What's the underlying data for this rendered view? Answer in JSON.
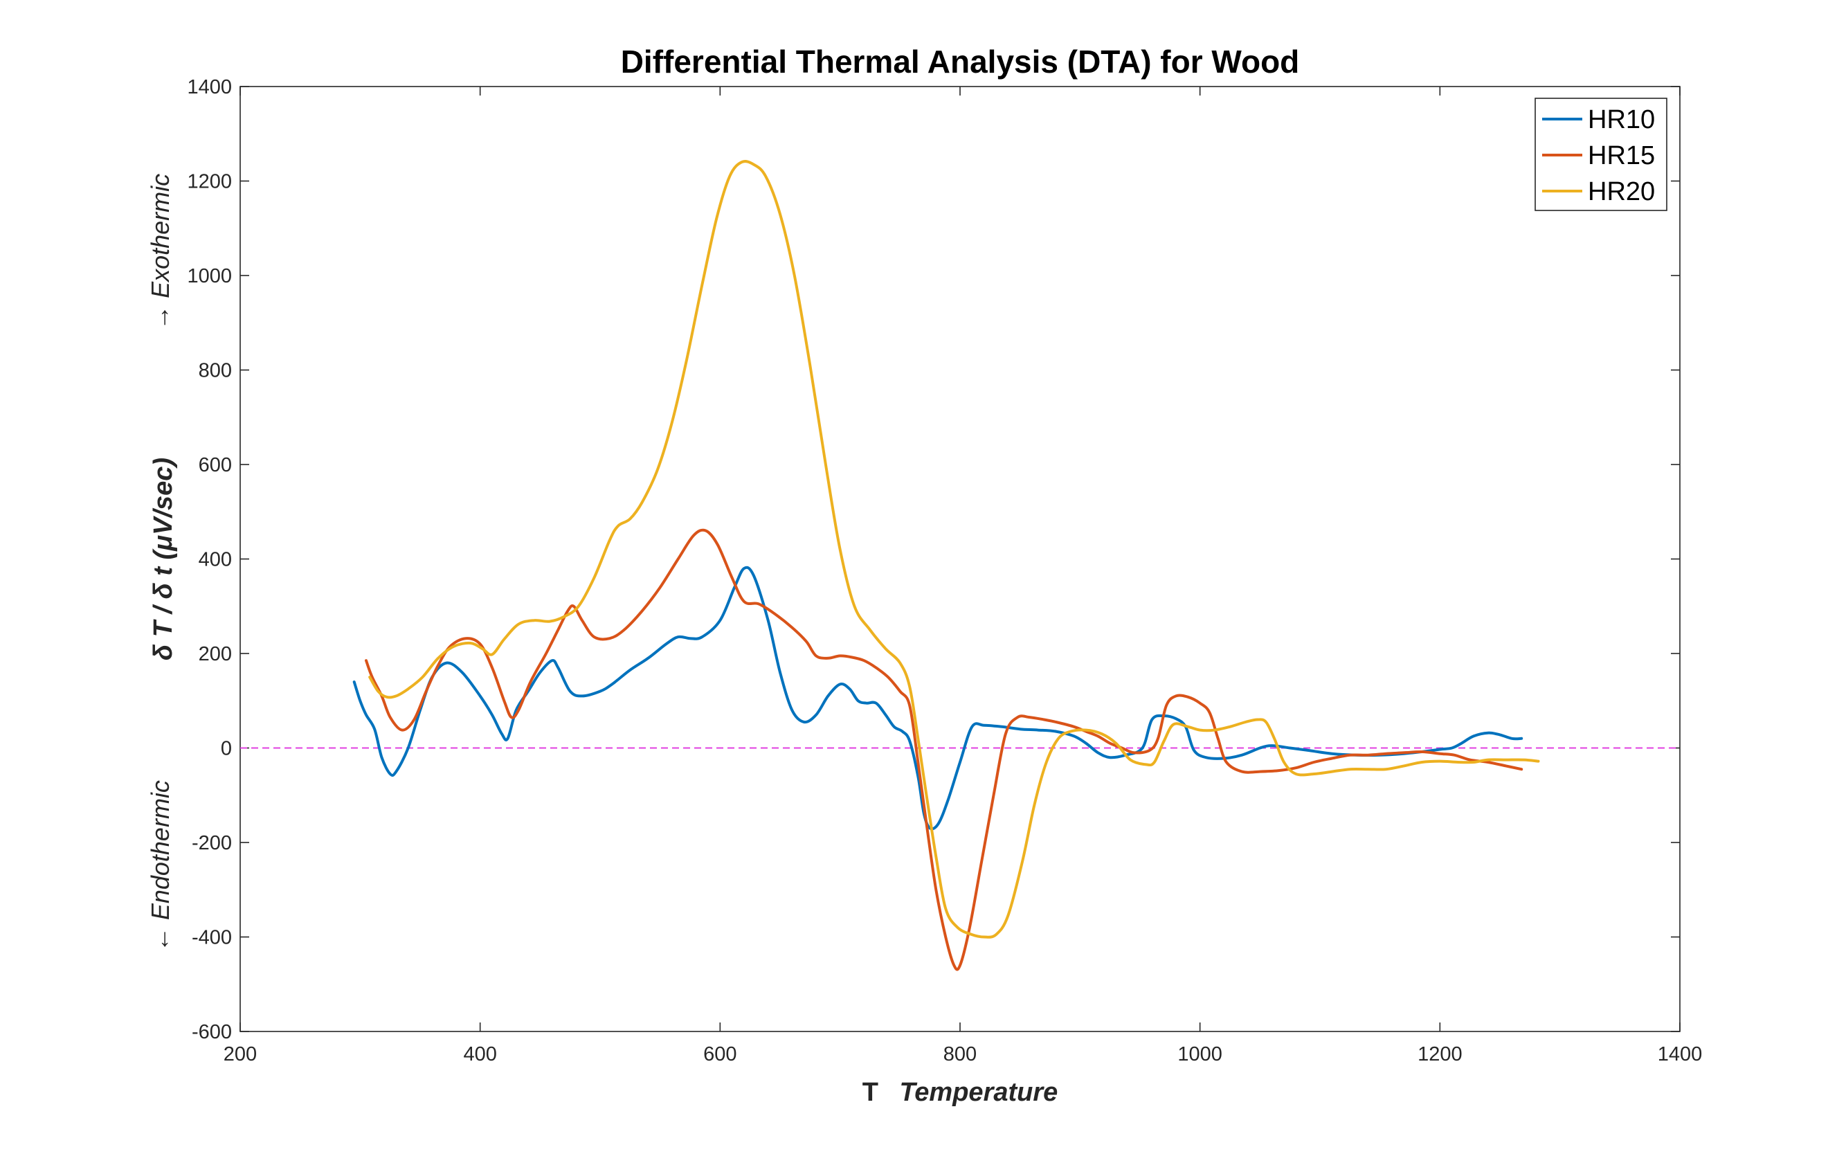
{
  "chart_data": {
    "type": "line",
    "title": "Differential Thermal Analysis (DTA) for Wood",
    "xlabel_prefix": "T",
    "xlabel": "Temperature",
    "ylabel": "δ T / δ t (μV/sec)",
    "y_side_upper": "→ Exothermic",
    "y_side_lower": "← Endothermic",
    "xlim": [
      200,
      1400
    ],
    "ylim": [
      -600,
      1400
    ],
    "xticks": [
      200,
      400,
      600,
      800,
      1000,
      1200,
      1400
    ],
    "yticks": [
      -600,
      -400,
      -200,
      0,
      200,
      400,
      600,
      800,
      1000,
      1200,
      1400
    ],
    "grid": false,
    "legend_position": "top-right",
    "reference_line": {
      "y": 0,
      "color": "#e040e0",
      "style": "dashed"
    },
    "series": [
      {
        "name": "HR10",
        "color": "#0072BD",
        "points": [
          [
            295,
            140
          ],
          [
            300,
            100
          ],
          [
            305,
            70
          ],
          [
            312,
            40
          ],
          [
            318,
            -20
          ],
          [
            325,
            -55
          ],
          [
            330,
            -50
          ],
          [
            340,
            0
          ],
          [
            350,
            80
          ],
          [
            360,
            150
          ],
          [
            372,
            180
          ],
          [
            385,
            160
          ],
          [
            400,
            110
          ],
          [
            410,
            70
          ],
          [
            418,
            30
          ],
          [
            423,
            20
          ],
          [
            430,
            80
          ],
          [
            440,
            120
          ],
          [
            450,
            160
          ],
          [
            460,
            185
          ],
          [
            465,
            170
          ],
          [
            475,
            120
          ],
          [
            485,
            110
          ],
          [
            500,
            120
          ],
          [
            510,
            135
          ],
          [
            525,
            165
          ],
          [
            540,
            190
          ],
          [
            555,
            220
          ],
          [
            565,
            235
          ],
          [
            575,
            232
          ],
          [
            585,
            235
          ],
          [
            600,
            270
          ],
          [
            612,
            340
          ],
          [
            620,
            380
          ],
          [
            628,
            365
          ],
          [
            640,
            270
          ],
          [
            650,
            160
          ],
          [
            660,
            80
          ],
          [
            670,
            55
          ],
          [
            680,
            70
          ],
          [
            690,
            110
          ],
          [
            700,
            135
          ],
          [
            708,
            125
          ],
          [
            715,
            100
          ],
          [
            722,
            95
          ],
          [
            730,
            95
          ],
          [
            738,
            70
          ],
          [
            745,
            45
          ],
          [
            752,
            35
          ],
          [
            758,
            15
          ],
          [
            765,
            -60
          ],
          [
            770,
            -140
          ],
          [
            775,
            -170
          ],
          [
            782,
            -160
          ],
          [
            790,
            -110
          ],
          [
            800,
            -30
          ],
          [
            810,
            45
          ],
          [
            820,
            48
          ],
          [
            835,
            45
          ],
          [
            850,
            40
          ],
          [
            865,
            38
          ],
          [
            880,
            35
          ],
          [
            895,
            25
          ],
          [
            905,
            10
          ],
          [
            915,
            -10
          ],
          [
            925,
            -20
          ],
          [
            938,
            -15
          ],
          [
            952,
            0
          ],
          [
            960,
            60
          ],
          [
            970,
            68
          ],
          [
            980,
            62
          ],
          [
            988,
            45
          ],
          [
            995,
            -5
          ],
          [
            1005,
            -20
          ],
          [
            1020,
            -22
          ],
          [
            1035,
            -15
          ],
          [
            1050,
            0
          ],
          [
            1060,
            5
          ],
          [
            1075,
            0
          ],
          [
            1090,
            -5
          ],
          [
            1110,
            -12
          ],
          [
            1130,
            -15
          ],
          [
            1150,
            -15
          ],
          [
            1170,
            -12
          ],
          [
            1185,
            -8
          ],
          [
            1200,
            -3
          ],
          [
            1210,
            0
          ],
          [
            1218,
            10
          ],
          [
            1228,
            25
          ],
          [
            1240,
            32
          ],
          [
            1250,
            28
          ],
          [
            1260,
            20
          ],
          [
            1268,
            20
          ]
        ]
      },
      {
        "name": "HR15",
        "color": "#D95319",
        "points": [
          [
            305,
            185
          ],
          [
            310,
            150
          ],
          [
            318,
            110
          ],
          [
            325,
            65
          ],
          [
            335,
            38
          ],
          [
            345,
            60
          ],
          [
            355,
            120
          ],
          [
            365,
            175
          ],
          [
            375,
            215
          ],
          [
            388,
            232
          ],
          [
            400,
            220
          ],
          [
            410,
            170
          ],
          [
            420,
            100
          ],
          [
            426,
            65
          ],
          [
            432,
            80
          ],
          [
            442,
            140
          ],
          [
            455,
            200
          ],
          [
            465,
            250
          ],
          [
            473,
            290
          ],
          [
            478,
            300
          ],
          [
            485,
            270
          ],
          [
            495,
            235
          ],
          [
            508,
            232
          ],
          [
            520,
            250
          ],
          [
            535,
            290
          ],
          [
            550,
            340
          ],
          [
            565,
            400
          ],
          [
            578,
            450
          ],
          [
            588,
            460
          ],
          [
            598,
            430
          ],
          [
            610,
            360
          ],
          [
            620,
            310
          ],
          [
            632,
            305
          ],
          [
            645,
            285
          ],
          [
            660,
            255
          ],
          [
            672,
            225
          ],
          [
            680,
            195
          ],
          [
            690,
            190
          ],
          [
            700,
            195
          ],
          [
            710,
            192
          ],
          [
            720,
            185
          ],
          [
            730,
            170
          ],
          [
            740,
            150
          ],
          [
            750,
            120
          ],
          [
            758,
            90
          ],
          [
            765,
            -30
          ],
          [
            772,
            -160
          ],
          [
            780,
            -300
          ],
          [
            788,
            -400
          ],
          [
            795,
            -460
          ],
          [
            800,
            -460
          ],
          [
            808,
            -380
          ],
          [
            818,
            -240
          ],
          [
            828,
            -100
          ],
          [
            838,
            30
          ],
          [
            848,
            65
          ],
          [
            858,
            65
          ],
          [
            870,
            60
          ],
          [
            880,
            55
          ],
          [
            895,
            45
          ],
          [
            905,
            35
          ],
          [
            915,
            25
          ],
          [
            925,
            10
          ],
          [
            935,
            0
          ],
          [
            945,
            -10
          ],
          [
            958,
            -5
          ],
          [
            965,
            20
          ],
          [
            972,
            90
          ],
          [
            980,
            110
          ],
          [
            990,
            108
          ],
          [
            1000,
            95
          ],
          [
            1008,
            75
          ],
          [
            1015,
            20
          ],
          [
            1022,
            -30
          ],
          [
            1035,
            -50
          ],
          [
            1050,
            -50
          ],
          [
            1065,
            -48
          ],
          [
            1080,
            -42
          ],
          [
            1095,
            -30
          ],
          [
            1110,
            -22
          ],
          [
            1125,
            -15
          ],
          [
            1140,
            -15
          ],
          [
            1155,
            -12
          ],
          [
            1170,
            -10
          ],
          [
            1185,
            -8
          ],
          [
            1200,
            -12
          ],
          [
            1212,
            -15
          ],
          [
            1225,
            -25
          ],
          [
            1240,
            -30
          ],
          [
            1255,
            -38
          ],
          [
            1268,
            -45
          ]
        ]
      },
      {
        "name": "HR20",
        "color": "#EDB120",
        "points": [
          [
            308,
            150
          ],
          [
            315,
            120
          ],
          [
            322,
            108
          ],
          [
            330,
            110
          ],
          [
            340,
            125
          ],
          [
            352,
            150
          ],
          [
            365,
            190
          ],
          [
            378,
            215
          ],
          [
            392,
            222
          ],
          [
            402,
            210
          ],
          [
            410,
            198
          ],
          [
            420,
            230
          ],
          [
            432,
            262
          ],
          [
            445,
            270
          ],
          [
            458,
            268
          ],
          [
            470,
            278
          ],
          [
            482,
            300
          ],
          [
            495,
            360
          ],
          [
            508,
            440
          ],
          [
            515,
            470
          ],
          [
            525,
            485
          ],
          [
            535,
            520
          ],
          [
            548,
            590
          ],
          [
            560,
            690
          ],
          [
            572,
            820
          ],
          [
            585,
            980
          ],
          [
            597,
            1120
          ],
          [
            608,
            1210
          ],
          [
            618,
            1240
          ],
          [
            628,
            1235
          ],
          [
            638,
            1210
          ],
          [
            650,
            1130
          ],
          [
            662,
            1000
          ],
          [
            675,
            810
          ],
          [
            688,
            600
          ],
          [
            700,
            420
          ],
          [
            712,
            300
          ],
          [
            725,
            250
          ],
          [
            738,
            210
          ],
          [
            750,
            180
          ],
          [
            758,
            130
          ],
          [
            765,
            20
          ],
          [
            772,
            -100
          ],
          [
            780,
            -230
          ],
          [
            788,
            -340
          ],
          [
            798,
            -380
          ],
          [
            810,
            -395
          ],
          [
            820,
            -400
          ],
          [
            830,
            -395
          ],
          [
            840,
            -355
          ],
          [
            852,
            -240
          ],
          [
            862,
            -120
          ],
          [
            872,
            -30
          ],
          [
            882,
            20
          ],
          [
            892,
            35
          ],
          [
            905,
            38
          ],
          [
            918,
            30
          ],
          [
            930,
            10
          ],
          [
            942,
            -25
          ],
          [
            955,
            -35
          ],
          [
            962,
            -30
          ],
          [
            970,
            15
          ],
          [
            978,
            50
          ],
          [
            990,
            45
          ],
          [
            1000,
            38
          ],
          [
            1012,
            38
          ],
          [
            1025,
            45
          ],
          [
            1038,
            55
          ],
          [
            1048,
            60
          ],
          [
            1055,
            55
          ],
          [
            1062,
            20
          ],
          [
            1070,
            -30
          ],
          [
            1080,
            -55
          ],
          [
            1095,
            -55
          ],
          [
            1110,
            -50
          ],
          [
            1125,
            -45
          ],
          [
            1140,
            -45
          ],
          [
            1155,
            -45
          ],
          [
            1170,
            -38
          ],
          [
            1185,
            -30
          ],
          [
            1200,
            -28
          ],
          [
            1215,
            -30
          ],
          [
            1228,
            -30
          ],
          [
            1240,
            -25
          ],
          [
            1255,
            -25
          ],
          [
            1270,
            -25
          ],
          [
            1282,
            -28
          ]
        ]
      }
    ]
  }
}
